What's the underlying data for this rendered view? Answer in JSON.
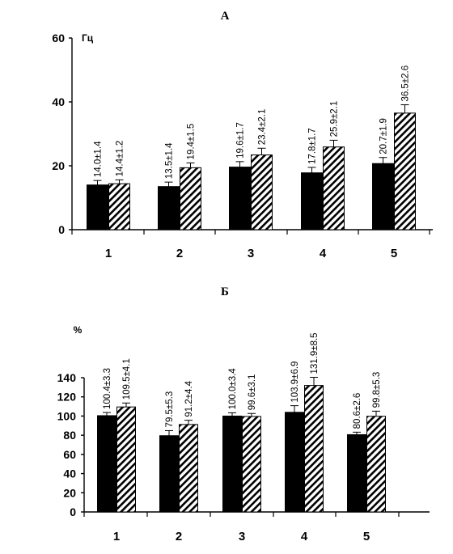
{
  "chart_data": [
    {
      "type": "bar",
      "title": "А",
      "ylabel": "Гц",
      "ylim": [
        0,
        60
      ],
      "yticks": [
        0,
        20,
        40,
        60
      ],
      "categories": [
        "1",
        "2",
        "3",
        "4",
        "5"
      ],
      "series": [
        {
          "values": [
            14.0,
            13.5,
            19.6,
            17.8,
            20.7
          ],
          "errors": [
            1.4,
            1.4,
            1.7,
            1.7,
            1.9
          ],
          "fill": "solid-black",
          "labels": [
            "14.0±1.4",
            "13.5±1.4",
            "19.6±1.7",
            "17.8±1.7",
            "20.7±1.9"
          ]
        },
        {
          "values": [
            14.4,
            19.4,
            23.4,
            25.9,
            36.5
          ],
          "errors": [
            1.2,
            1.5,
            2.1,
            2.1,
            2.6
          ],
          "fill": "diagonal-hatch",
          "labels": [
            "14.4±1.2",
            "19.4±1.5",
            "23.4±2.1",
            "25.9±2.1",
            "36.5±2.6"
          ]
        }
      ]
    },
    {
      "type": "bar",
      "title": "Б",
      "ylabel": "%",
      "ylim": [
        0,
        140
      ],
      "yticks": [
        0,
        20,
        40,
        60,
        80,
        100,
        120,
        140
      ],
      "categories": [
        "1",
        "2",
        "3",
        "4",
        "5"
      ],
      "series": [
        {
          "values": [
            100.4,
            79.5,
            100.0,
            103.9,
            80.6
          ],
          "errors": [
            3.3,
            5.3,
            3.4,
            6.9,
            2.6
          ],
          "fill": "solid-black",
          "labels": [
            "100.4±3.3",
            "79.5±5.3",
            "100.0±3.4",
            "103.9±6.9",
            "80.6±2.6"
          ]
        },
        {
          "values": [
            109.5,
            91.2,
            99.6,
            131.9,
            99.8
          ],
          "errors": [
            4.1,
            4.4,
            3.1,
            8.5,
            5.3
          ],
          "fill": "diagonal-hatch",
          "labels": [
            "109.5±4.1",
            "91.2±4.4",
            "99.6±3.1",
            "131.9±8.5",
            "99.8±5.3"
          ]
        }
      ]
    }
  ]
}
